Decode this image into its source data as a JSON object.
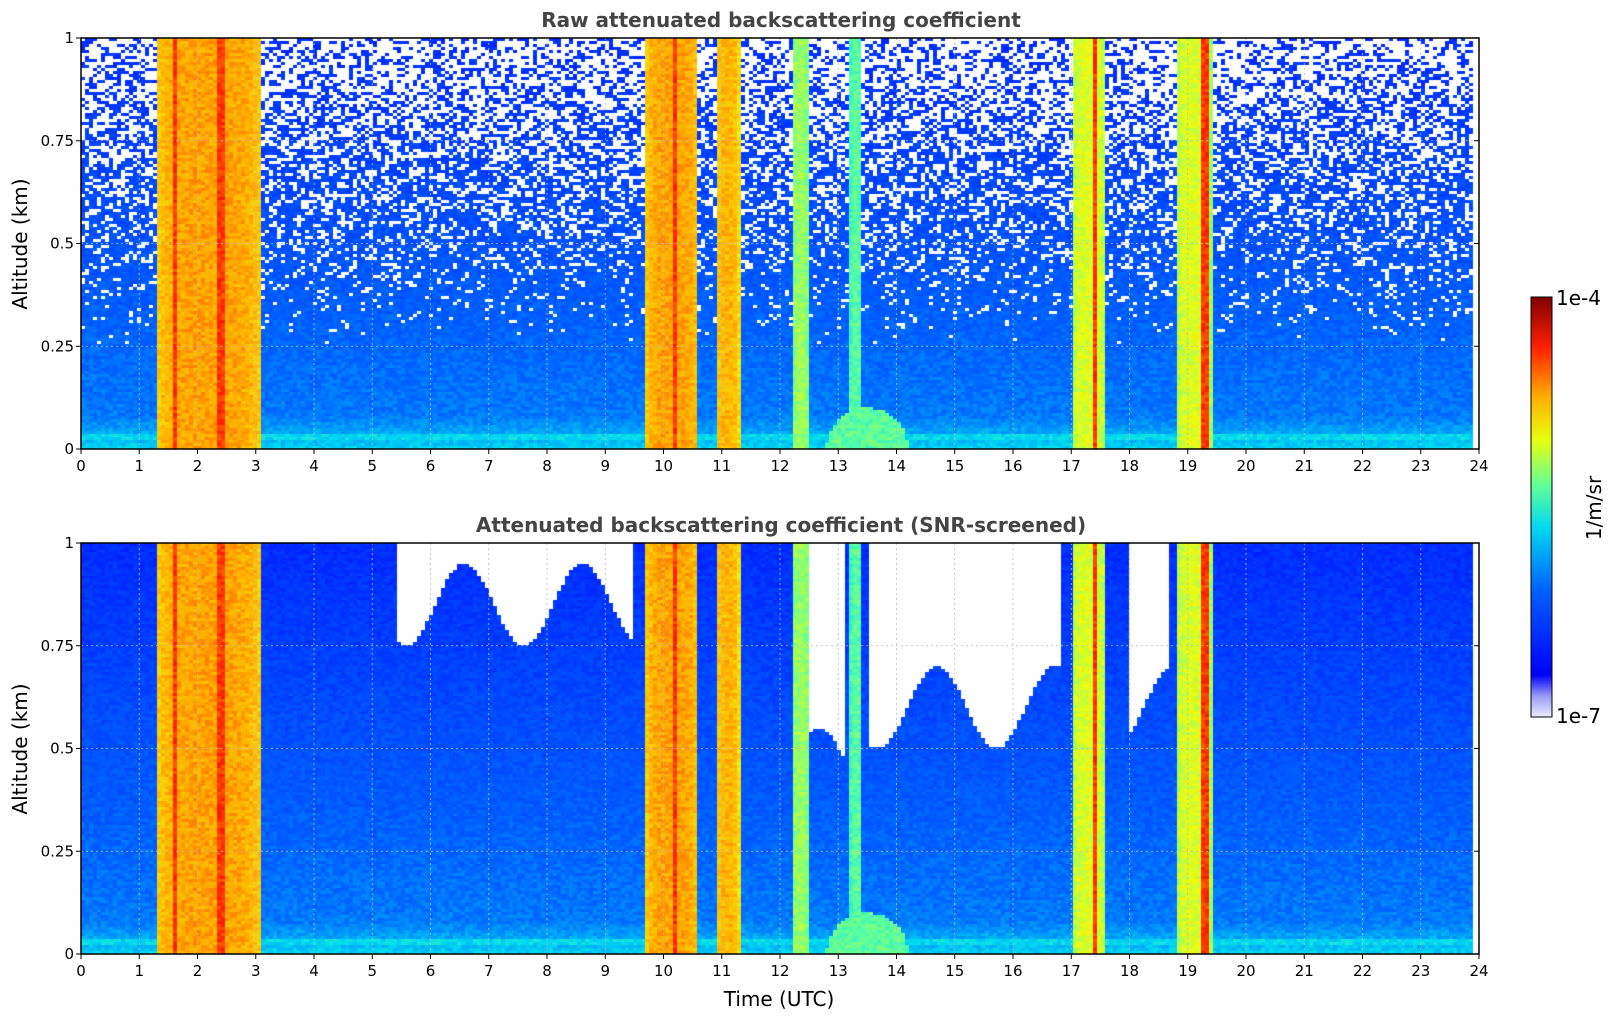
{
  "chart_data": [
    {
      "type": "heatmap",
      "title": "Raw attenuated backscattering coefficient",
      "xlabel": "",
      "ylabel": "Altitude (km)",
      "xlim": [
        0,
        24
      ],
      "ylim": [
        0,
        1
      ],
      "xticks": [
        "0",
        "1",
        "2",
        "3",
        "4",
        "5",
        "6",
        "7",
        "8",
        "9",
        "10",
        "11",
        "12",
        "13",
        "14",
        "15",
        "16",
        "17",
        "18",
        "19",
        "20",
        "21",
        "22",
        "23",
        "24"
      ],
      "yticks": [
        "0",
        "0.25",
        "0.5",
        "0.75",
        "1"
      ],
      "grid": true,
      "screened": false,
      "colormap": "jet",
      "aerosol_bands": [
        {
          "x0": 1.3,
          "x1": 3.1,
          "level": 0.72
        },
        {
          "x0": 9.7,
          "x1": 10.6,
          "level": 0.72
        },
        {
          "x0": 10.9,
          "x1": 11.3,
          "level": 0.7
        },
        {
          "x0": 12.2,
          "x1": 12.5,
          "level": 0.55
        },
        {
          "x0": 13.2,
          "x1": 13.4,
          "level": 0.5
        },
        {
          "x0": 17.0,
          "x1": 17.6,
          "level": 0.6
        },
        {
          "x0": 18.8,
          "x1": 19.4,
          "level": 0.6
        }
      ],
      "red_streaks": [
        1.6,
        2.4,
        10.2,
        17.4,
        19.3
      ],
      "boundary_layer_bump": {
        "x0": 12.8,
        "x1": 14.2,
        "top": 0.1
      }
    },
    {
      "type": "heatmap",
      "title": "Attenuated backscattering coefficient (SNR-screened)",
      "xlabel": "Time (UTC)",
      "ylabel": "Altitude (km)",
      "xlim": [
        0,
        24
      ],
      "ylim": [
        0,
        1
      ],
      "xticks": [
        "0",
        "1",
        "2",
        "3",
        "4",
        "5",
        "6",
        "7",
        "8",
        "9",
        "10",
        "11",
        "12",
        "13",
        "14",
        "15",
        "16",
        "17",
        "18",
        "19",
        "20",
        "21",
        "22",
        "23",
        "24"
      ],
      "yticks": [
        "0",
        "0.25",
        "0.5",
        "0.75",
        "1"
      ],
      "grid": true,
      "screened": true,
      "colormap": "jet",
      "masked_regions": [
        {
          "x0": 5.4,
          "x1": 9.5,
          "top_start": 0.85
        },
        {
          "x0": 12.5,
          "x1": 13.1,
          "top_start": 0.45
        },
        {
          "x0": 13.5,
          "x1": 16.8,
          "top_start": 0.6
        },
        {
          "x0": 18.0,
          "x1": 18.7,
          "top_start": 0.6
        }
      ]
    }
  ],
  "colorbar": {
    "label": "1/m/sr",
    "max_label": "1e-4",
    "min_label": "1e-7",
    "min_value": 1e-07,
    "max_value": 0.0001,
    "scale": "log"
  }
}
